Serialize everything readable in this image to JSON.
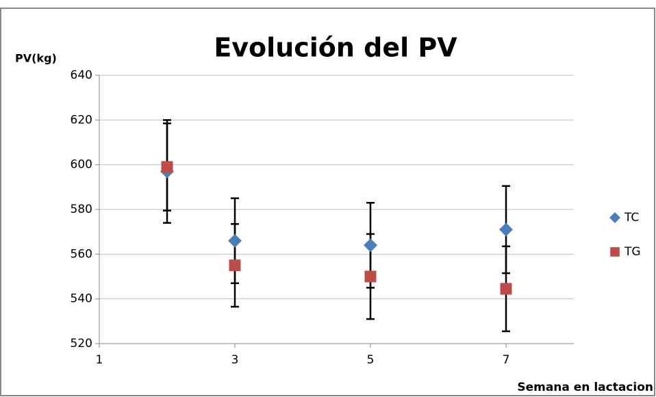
{
  "chart_data": {
    "type": "scatter",
    "title": "Evolución del PV",
    "y_label": "PV(kg)",
    "x_label": "Semana en lactacion",
    "xlim": [
      1,
      8
    ],
    "xticks": [
      1,
      3,
      5,
      7
    ],
    "ylim": [
      520,
      640
    ],
    "yticks": [
      520,
      540,
      560,
      580,
      600,
      620,
      640
    ],
    "grid": true,
    "legend": "right",
    "series": [
      {
        "name": "TC",
        "color": "#4a7ebb",
        "marker": "diamond",
        "x": [
          2,
          3,
          5,
          7
        ],
        "values": [
          597,
          566,
          564,
          571
        ],
        "errors": [
          23,
          19,
          19,
          19.5
        ]
      },
      {
        "name": "TG",
        "color": "#be4b48",
        "marker": "square",
        "x": [
          2,
          3,
          5,
          7
        ],
        "values": [
          599,
          555,
          550,
          544.5
        ],
        "errors": [
          19.5,
          18.5,
          19,
          19
        ]
      }
    ]
  }
}
